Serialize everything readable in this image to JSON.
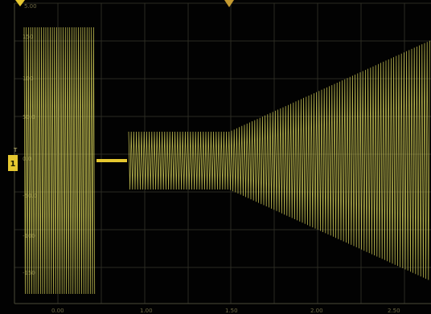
{
  "screen": {
    "trace_color": "#d8d35a",
    "marker_color": "#e6c830",
    "grid_color": "#2b2b22",
    "axis_label_color": "#6e6a45",
    "channel_marker_label": "1",
    "trigger_marker_label": "T",
    "top_left_label": "5.00",
    "y_labels": [
      "150",
      "100",
      "50.0",
      "0.0",
      "-50.0",
      "-100",
      "-150"
    ],
    "x_labels": [
      "0.00",
      "1.00",
      "1.50",
      "2.00",
      "2.50"
    ]
  }
}
